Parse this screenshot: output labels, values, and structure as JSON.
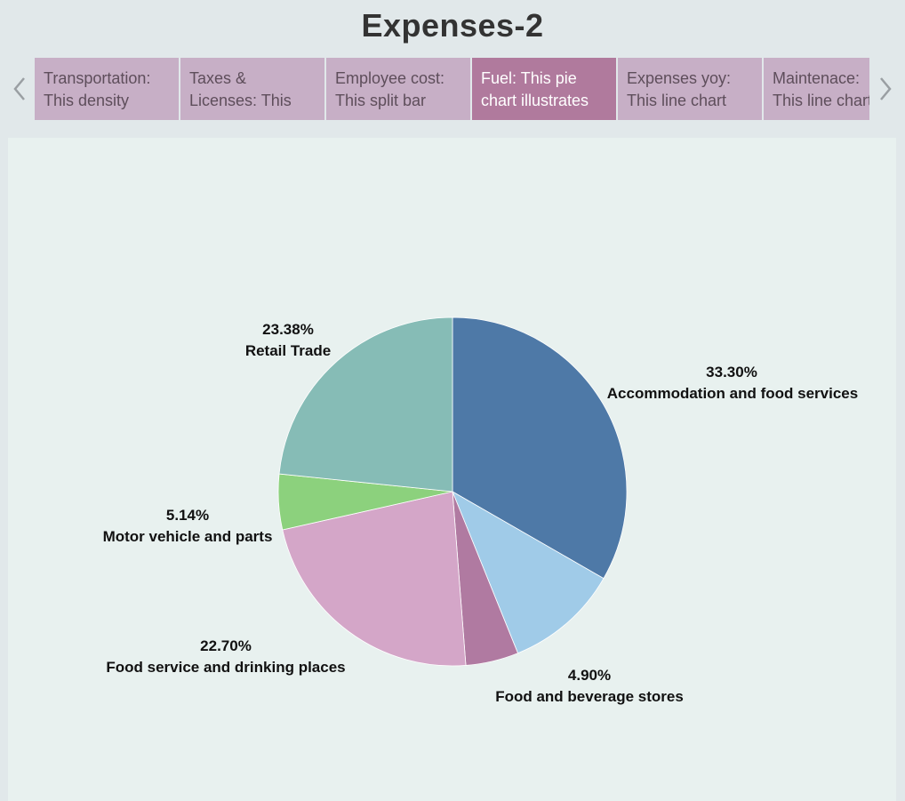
{
  "header": {
    "title": "Expenses-2"
  },
  "nav": {
    "prev_icon": "chevron-left-icon",
    "next_icon": "chevron-right-icon",
    "arrow_color": "#9a9fa3"
  },
  "tabs": [
    {
      "line1": "Transportation:",
      "line2": "This density",
      "active": false
    },
    {
      "line1": "Taxes &",
      "line2": "Licenses: This",
      "active": false
    },
    {
      "line1": "Employee cost:",
      "line2": "This split bar",
      "active": false
    },
    {
      "line1": "Fuel: This pie",
      "line2": "chart illustrates",
      "active": true
    },
    {
      "line1": "Expenses yoy:",
      "line2": "This line chart",
      "active": false
    },
    {
      "line1": "Maintenace:",
      "line2": "This line chart",
      "active": false
    }
  ],
  "chart_data": {
    "type": "pie",
    "title": "",
    "slices": [
      {
        "label": "Accommodation and food services",
        "value": 33.3,
        "display": "33.30%",
        "color": "#4e79a7"
      },
      {
        "label": "",
        "value": 10.58,
        "display": "",
        "color": "#a0cbe8"
      },
      {
        "label": "Food and beverage stores",
        "value": 4.9,
        "display": "4.90%",
        "color": "#b07aa1"
      },
      {
        "label": "Food service and drinking places",
        "value": 22.7,
        "display": "22.70%",
        "color": "#d4a6c8"
      },
      {
        "label": "Motor vehicle and parts",
        "value": 5.14,
        "display": "5.14%",
        "color": "#8cd17d"
      },
      {
        "label": "Retail Trade",
        "value": 23.38,
        "display": "23.38%",
        "color": "#86bcb6"
      }
    ]
  }
}
